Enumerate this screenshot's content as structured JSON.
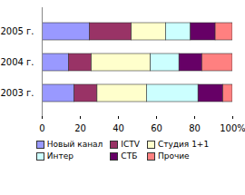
{
  "chart_data": {
    "type": "bar",
    "orientation": "horizontal",
    "stacked": true,
    "legend": "bottom",
    "categories": [
      "2005 г.",
      "2004 г.",
      "2003 г."
    ],
    "series": [
      {
        "name": "Новый канал",
        "color": "#9999ff",
        "values": [
          25,
          14,
          17
        ]
      },
      {
        "name": "ICTV",
        "color": "#993366",
        "values": [
          22,
          12,
          12
        ]
      },
      {
        "name": "Студия 1+1",
        "color": "#ffffcc",
        "values": [
          18,
          31,
          26
        ]
      },
      {
        "name": "Интер",
        "color": "#ccffff",
        "values": [
          13,
          15,
          27
        ]
      },
      {
        "name": "СТБ",
        "color": "#660066",
        "values": [
          13,
          12,
          13
        ]
      },
      {
        "name": "Прочие",
        "color": "#ff8080",
        "values": [
          9,
          16,
          5
        ]
      }
    ],
    "xlim": [
      0,
      100
    ],
    "xticks": [
      0,
      20,
      40,
      60,
      80,
      {
        "value": 100,
        "label": "100%"
      }
    ]
  }
}
